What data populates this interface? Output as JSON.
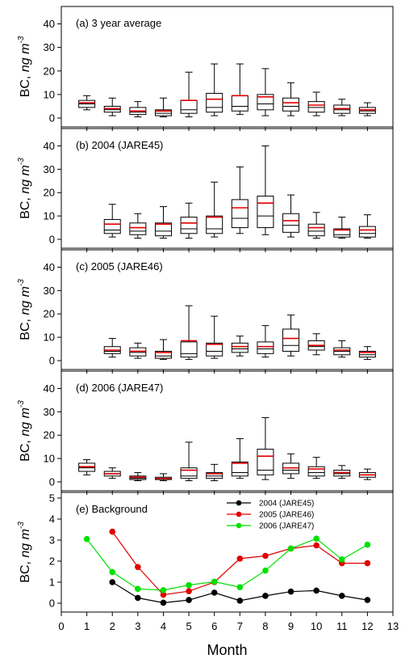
{
  "figure": {
    "xlabel": "Month",
    "ylabel_prefix": "BC, ",
    "ylabel_unit": "ng m",
    "ylabel_exp": "-3"
  },
  "colors": {
    "box": "#000000",
    "mean_line": "#e00000",
    "series_2004": "#000000",
    "series_2005": "#e00000",
    "series_2006": "#00e000"
  },
  "chart_data": [
    {
      "type": "box",
      "title": "(a) 3 year average",
      "ylim": [
        0,
        45
      ],
      "yticks": [
        0,
        10,
        20,
        30,
        40
      ],
      "boxes": [
        {
          "month": 1,
          "min": 3.5,
          "q1": 4.5,
          "median": 6.0,
          "q3": 7.5,
          "max": 9.5,
          "mean": 6.5
        },
        {
          "month": 2,
          "min": 1.0,
          "q1": 2.5,
          "median": 3.5,
          "q3": 5.0,
          "max": 8.5,
          "mean": 4.0
        },
        {
          "month": 3,
          "min": 0.5,
          "q1": 1.5,
          "median": 2.5,
          "q3": 4.5,
          "max": 7.0,
          "mean": 3.0
        },
        {
          "month": 4,
          "min": 0.5,
          "q1": 1.0,
          "median": 2.0,
          "q3": 3.5,
          "max": 8.5,
          "mean": 3.0
        },
        {
          "month": 5,
          "min": 0.5,
          "q1": 2.0,
          "median": 3.5,
          "q3": 7.5,
          "max": 19.5,
          "mean": 7.5
        },
        {
          "month": 6,
          "min": 1.0,
          "q1": 2.5,
          "median": 4.5,
          "q3": 10.5,
          "max": 23.0,
          "mean": 8.0
        },
        {
          "month": 7,
          "min": 1.5,
          "q1": 3.0,
          "median": 5.0,
          "q3": 9.5,
          "max": 23.0,
          "mean": 9.5
        },
        {
          "month": 8,
          "min": 1.0,
          "q1": 3.5,
          "median": 6.0,
          "q3": 10.0,
          "max": 21.0,
          "mean": 9.0
        },
        {
          "month": 9,
          "min": 1.0,
          "q1": 3.0,
          "median": 5.0,
          "q3": 8.5,
          "max": 15.0,
          "mean": 6.5
        },
        {
          "month": 10,
          "min": 1.0,
          "q1": 2.5,
          "median": 4.5,
          "q3": 7.0,
          "max": 11.0,
          "mean": 5.5
        },
        {
          "month": 11,
          "min": 1.0,
          "q1": 2.0,
          "median": 3.5,
          "q3": 5.5,
          "max": 8.0,
          "mean": 4.0
        },
        {
          "month": 12,
          "min": 1.0,
          "q1": 2.0,
          "median": 3.0,
          "q3": 4.5,
          "max": 6.5,
          "mean": 3.5
        }
      ]
    },
    {
      "type": "box",
      "title": "(b) 2004 (JARE45)",
      "ylim": [
        0,
        45
      ],
      "yticks": [
        0,
        10,
        20,
        30,
        40
      ],
      "boxes": [
        {
          "month": 2,
          "min": 1.0,
          "q1": 2.5,
          "median": 4.0,
          "q3": 8.5,
          "max": 15.0,
          "mean": 6.5
        },
        {
          "month": 3,
          "min": 0.5,
          "q1": 2.0,
          "median": 3.5,
          "q3": 7.0,
          "max": 11.0,
          "mean": 5.0
        },
        {
          "month": 4,
          "min": 0.5,
          "q1": 1.5,
          "median": 3.5,
          "q3": 7.0,
          "max": 14.0,
          "mean": 6.5
        },
        {
          "month": 5,
          "min": 0.5,
          "q1": 2.5,
          "median": 4.5,
          "q3": 9.5,
          "max": 15.5,
          "mean": 7.0
        },
        {
          "month": 6,
          "min": 1.0,
          "q1": 2.5,
          "median": 4.5,
          "q3": 10.0,
          "max": 24.5,
          "mean": 9.5
        },
        {
          "month": 7,
          "min": 2.5,
          "q1": 5.0,
          "median": 9.0,
          "q3": 17.0,
          "max": 31.0,
          "mean": 13.5
        },
        {
          "month": 8,
          "min": 2.0,
          "q1": 5.0,
          "median": 10.0,
          "q3": 18.5,
          "max": 40.0,
          "mean": 15.5
        },
        {
          "month": 9,
          "min": 1.0,
          "q1": 3.0,
          "median": 6.0,
          "q3": 11.0,
          "max": 19.0,
          "mean": 8.0
        },
        {
          "month": 10,
          "min": 0.5,
          "q1": 1.5,
          "median": 3.5,
          "q3": 6.5,
          "max": 11.5,
          "mean": 5.0
        },
        {
          "month": 11,
          "min": 0.5,
          "q1": 1.0,
          "median": 2.0,
          "q3": 4.5,
          "max": 9.5,
          "mean": 4.0
        },
        {
          "month": 12,
          "min": 0.5,
          "q1": 1.0,
          "median": 2.5,
          "q3": 5.5,
          "max": 10.5,
          "mean": 4.0
        }
      ]
    },
    {
      "type": "box",
      "title": "(c) 2005 (JARE46)",
      "ylim": [
        0,
        45
      ],
      "yticks": [
        0,
        10,
        20,
        30,
        40
      ],
      "boxes": [
        {
          "month": 2,
          "min": 1.5,
          "q1": 3.0,
          "median": 4.0,
          "q3": 6.0,
          "max": 9.5,
          "mean": 4.5
        },
        {
          "month": 3,
          "min": 1.0,
          "q1": 2.0,
          "median": 3.5,
          "q3": 5.5,
          "max": 7.5,
          "mean": 4.0
        },
        {
          "month": 4,
          "min": 0.5,
          "q1": 1.0,
          "median": 2.0,
          "q3": 4.0,
          "max": 9.0,
          "mean": 3.5
        },
        {
          "month": 5,
          "min": 0.5,
          "q1": 1.5,
          "median": 3.0,
          "q3": 8.0,
          "max": 23.5,
          "mean": 8.5
        },
        {
          "month": 6,
          "min": 1.0,
          "q1": 2.0,
          "median": 4.0,
          "q3": 7.5,
          "max": 19.0,
          "mean": 7.0
        },
        {
          "month": 7,
          "min": 2.0,
          "q1": 3.5,
          "median": 5.0,
          "q3": 7.5,
          "max": 10.5,
          "mean": 6.0
        },
        {
          "month": 8,
          "min": 1.5,
          "q1": 3.0,
          "median": 5.0,
          "q3": 8.0,
          "max": 15.0,
          "mean": 6.0
        },
        {
          "month": 9,
          "min": 2.0,
          "q1": 4.0,
          "median": 6.5,
          "q3": 13.5,
          "max": 19.5,
          "mean": 9.5
        },
        {
          "month": 10,
          "min": 2.5,
          "q1": 4.5,
          "median": 6.0,
          "q3": 8.5,
          "max": 11.5,
          "mean": 6.5
        },
        {
          "month": 11,
          "min": 1.5,
          "q1": 2.5,
          "median": 4.0,
          "q3": 5.5,
          "max": 8.5,
          "mean": 4.5
        },
        {
          "month": 12,
          "min": 0.5,
          "q1": 1.5,
          "median": 2.5,
          "q3": 4.0,
          "max": 6.0,
          "mean": 3.5
        }
      ]
    },
    {
      "type": "box",
      "title": "(d) 2006 (JARE47)",
      "ylim": [
        0,
        45
      ],
      "yticks": [
        0,
        10,
        20,
        30,
        40
      ],
      "boxes": [
        {
          "month": 1,
          "min": 3.0,
          "q1": 4.5,
          "median": 6.0,
          "q3": 8.0,
          "max": 9.5,
          "mean": 6.5
        },
        {
          "month": 2,
          "min": 1.5,
          "q1": 2.5,
          "median": 3.5,
          "q3": 4.5,
          "max": 6.0,
          "mean": 3.5
        },
        {
          "month": 3,
          "min": 0.5,
          "q1": 1.0,
          "median": 1.5,
          "q3": 2.5,
          "max": 4.0,
          "mean": 2.0
        },
        {
          "month": 4,
          "min": 0.5,
          "q1": 1.0,
          "median": 1.5,
          "q3": 2.0,
          "max": 3.5,
          "mean": 1.5
        },
        {
          "month": 5,
          "min": 0.5,
          "q1": 1.5,
          "median": 2.5,
          "q3": 6.0,
          "max": 17.0,
          "mean": 5.0
        },
        {
          "month": 6,
          "min": 0.5,
          "q1": 1.5,
          "median": 2.5,
          "q3": 4.0,
          "max": 7.5,
          "mean": 3.5
        },
        {
          "month": 7,
          "min": 1.5,
          "q1": 2.5,
          "median": 4.0,
          "q3": 8.5,
          "max": 18.5,
          "mean": 8.0
        },
        {
          "month": 8,
          "min": 1.0,
          "q1": 3.0,
          "median": 5.0,
          "q3": 14.0,
          "max": 27.5,
          "mean": 11.0
        },
        {
          "month": 9,
          "min": 1.5,
          "q1": 3.5,
          "median": 5.0,
          "q3": 8.0,
          "max": 12.0,
          "mean": 6.0
        },
        {
          "month": 10,
          "min": 1.5,
          "q1": 2.5,
          "median": 4.0,
          "q3": 6.5,
          "max": 10.5,
          "mean": 5.5
        },
        {
          "month": 11,
          "min": 1.5,
          "q1": 2.5,
          "median": 3.5,
          "q3": 5.0,
          "max": 7.0,
          "mean": 4.0
        },
        {
          "month": 12,
          "min": 1.0,
          "q1": 2.0,
          "median": 3.0,
          "q3": 4.0,
          "max": 5.5,
          "mean": 3.0
        }
      ]
    },
    {
      "type": "line",
      "title": "(e) Background",
      "ylim": [
        0,
        5
      ],
      "yticks": [
        0,
        1,
        2,
        3,
        4,
        5
      ],
      "xlim": [
        0,
        13
      ],
      "xticks": [
        0,
        1,
        2,
        3,
        4,
        5,
        6,
        7,
        8,
        9,
        10,
        11,
        12,
        13
      ],
      "legend_position": "top-right",
      "series": [
        {
          "name": "2004 (JARE45)",
          "color_key": "series_2004",
          "x": [
            2,
            3,
            4,
            5,
            6,
            7,
            8,
            9,
            10,
            11,
            12
          ],
          "y": [
            1.0,
            0.25,
            0.02,
            0.15,
            0.5,
            0.12,
            0.35,
            0.55,
            0.6,
            0.35,
            0.15
          ]
        },
        {
          "name": "2005 (JARE46)",
          "color_key": "series_2005",
          "x": [
            2,
            3,
            4,
            5,
            6,
            7,
            8,
            9,
            10,
            11,
            12
          ],
          "y": [
            3.4,
            1.72,
            0.4,
            0.57,
            1.0,
            2.12,
            2.25,
            2.6,
            2.75,
            1.9,
            1.9
          ]
        },
        {
          "name": "2006 (JARE47)",
          "color_key": "series_2006",
          "x": [
            1,
            2,
            3,
            4,
            5,
            6,
            7,
            8,
            9,
            10,
            11,
            12
          ],
          "y": [
            3.05,
            1.48,
            0.68,
            0.62,
            0.86,
            1.02,
            0.76,
            1.55,
            2.6,
            3.07,
            2.08,
            2.78
          ]
        }
      ]
    }
  ]
}
